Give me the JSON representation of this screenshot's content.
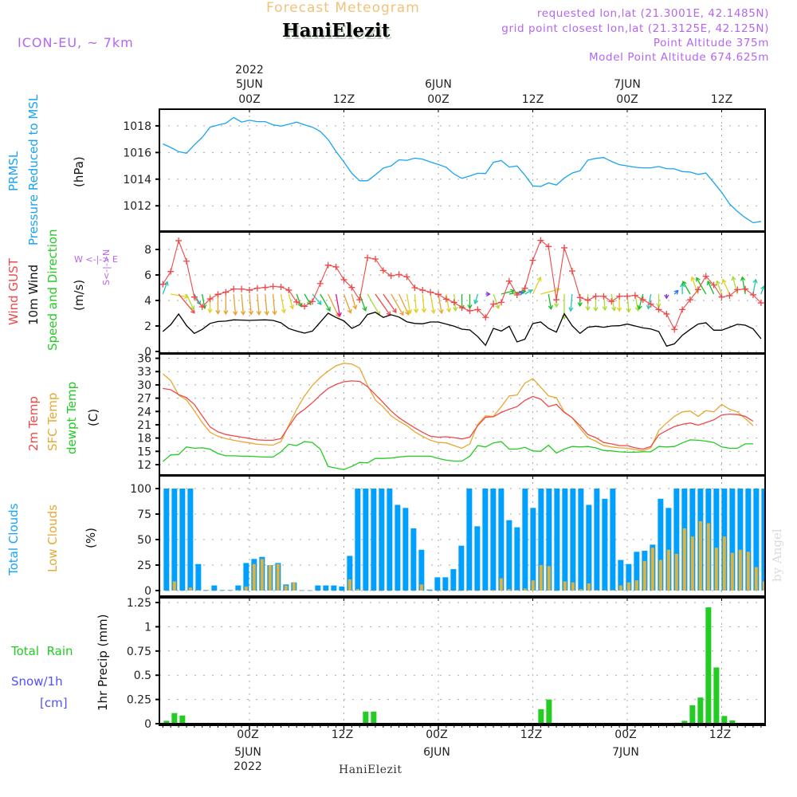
{
  "header": {
    "title": "Forecast Meteogram",
    "station": "HaniElezit",
    "model": "ICON-EU, ~ 7km",
    "requested": "requested lon,lat (21.3001E, 42.1485N)",
    "grid_point": "grid point closest lon,lat (21.3125E, 42.125N)",
    "point_altitude": "Point Altitude 375m",
    "model_altitude": "Model Point Altitude 674.625m"
  },
  "footer": {
    "station": "HaniElezit",
    "credit": "by Angel"
  },
  "time_axis": {
    "year": "2022",
    "dates": [
      {
        "label": "5JUN",
        "hour": 0
      },
      {
        "label": "6JUN",
        "hour": 24
      },
      {
        "label": "7JUN",
        "hour": 48
      }
    ],
    "hour_ticks": [
      {
        "label": "00Z",
        "hour": 0
      },
      {
        "label": "12Z",
        "hour": 12
      },
      {
        "label": "00Z",
        "hour": 24
      },
      {
        "label": "12Z",
        "hour": 36
      },
      {
        "label": "00Z",
        "hour": 48
      },
      {
        "label": "12Z",
        "hour": 60
      }
    ],
    "xlim_hours": [
      -11.44,
      65.52
    ],
    "first_sample_hour": -11
  },
  "labels": {
    "pressure": {
      "l1": "PRMSL",
      "l2": "Pressure Reduced to MSL",
      "unit": "(hPa)"
    },
    "wind": {
      "gust": "Wind GUST",
      "wind10": "10m Wind",
      "speed_dir": "Speed and Direction",
      "unit": "(m/s)",
      "compass_ns": "S<-|->N",
      "compass_we": "W <-|-> E"
    },
    "temp": {
      "t2m": "2m Temp",
      "sfc": "SFC Temp",
      "dew": "dewpt Temp",
      "unit": "(C)"
    },
    "clouds": {
      "total": "Total Clouds",
      "low": "Low Clouds",
      "unit": "(%)"
    },
    "precip": {
      "rain": "Total  Rain",
      "snow": "Snow/1h",
      "snow_unit": "[cm]",
      "axis": "1hr Precip (mm)"
    }
  },
  "colors": {
    "pressure": "#18a4f6",
    "gust": "#f04848",
    "wind10": "#000000",
    "t2m": "#f04848",
    "sfc": "#e8a830",
    "dew": "#22cc22",
    "total_clouds": "#00a0ff",
    "low_clouds": "#e8b030",
    "rain": "#22cc22",
    "snow": "#5050ff",
    "label_purple": "#b466ee",
    "arrow": {
      "o": "#eaa030",
      "y": "#e0d020",
      "g": "#10c020",
      "lg": "#a8dc30",
      "c": "#20c8b0",
      "r": "#f04848",
      "m": "#e0109a",
      "p": "#8a2be2",
      "b": "#2070ff"
    }
  },
  "chart_data": [
    {
      "type": "line",
      "panel": "pressure",
      "title": "PRMSL Pressure Reduced to MSL",
      "ylabel": "(hPa)",
      "ylim": [
        1010.1,
        1019.25
      ],
      "yticks": [
        1012,
        1014,
        1016,
        1018
      ],
      "grid": true,
      "series": [
        {
          "name": "PRMSL",
          "values": [
            1016.65,
            1016.38,
            1016.06,
            1015.94,
            1016.57,
            1017.13,
            1017.9,
            1018.06,
            1018.2,
            1018.63,
            1018.28,
            1018.42,
            1018.32,
            1018.32,
            1018.08,
            1017.98,
            1018.12,
            1018.28,
            1018.08,
            1017.9,
            1017.58,
            1016.97,
            1016.08,
            1015.29,
            1014.44,
            1013.88,
            1013.88,
            1014.32,
            1014.83,
            1015.0,
            1015.45,
            1015.41,
            1015.58,
            1015.5,
            1015.29,
            1015.1,
            1014.89,
            1014.38,
            1014.06,
            1014.24,
            1014.44,
            1014.42,
            1015.27,
            1015.39,
            1014.91,
            1014.99,
            1014.3,
            1013.49,
            1013.45,
            1013.72,
            1013.56,
            1014.08,
            1014.46,
            1014.63,
            1015.43,
            1015.56,
            1015.62,
            1015.33,
            1015.09,
            1015.0,
            1014.89,
            1014.85,
            1014.85,
            1014.95,
            1014.79,
            1014.77,
            1014.57,
            1014.53,
            1014.36,
            1014.46,
            1013.74,
            1013.01,
            1012.14,
            1011.58,
            1011.11,
            1010.73,
            1010.83
          ]
        }
      ]
    },
    {
      "type": "line",
      "panel": "wind",
      "title": "Wind GUST / 10m Wind Speed and Direction",
      "ylabel": "(m/s)",
      "ylim": [
        -0.125,
        9.375
      ],
      "yticks": [
        0,
        2,
        4,
        6,
        8
      ],
      "grid": true,
      "arrow_base_value": 4.5,
      "series": [
        {
          "name": "Wind GUST",
          "values": [
            5.27,
            6.27,
            8.69,
            7.08,
            4.27,
            3.5,
            4.12,
            4.48,
            4.65,
            4.9,
            4.9,
            4.81,
            4.96,
            5.02,
            5.1,
            5.06,
            4.81,
            3.88,
            3.54,
            3.92,
            5.33,
            6.77,
            6.63,
            5.63,
            5.02,
            4.06,
            7.35,
            7.25,
            6.35,
            5.94,
            6.04,
            5.85,
            5.0,
            4.81,
            4.65,
            4.48,
            4.1,
            3.85,
            3.44,
            3.19,
            3.29,
            2.67,
            3.71,
            3.85,
            5.52,
            4.44,
            4.96,
            7.15,
            8.71,
            8.23,
            4.06,
            8.13,
            6.31,
            4.23,
            4.02,
            4.33,
            4.33,
            3.92,
            4.33,
            4.33,
            4.4,
            4.06,
            3.71,
            3.29,
            2.94,
            1.73,
            3.29,
            4.06,
            4.85,
            5.9,
            5.21,
            4.27,
            4.38,
            4.85,
            4.9,
            4.44,
            3.81
          ]
        },
        {
          "name": "10m Wind",
          "values": [
            1.56,
            2.1,
            2.94,
            2.04,
            1.42,
            1.73,
            2.2,
            2.35,
            2.38,
            2.48,
            2.46,
            2.44,
            2.46,
            2.48,
            2.44,
            2.25,
            1.8,
            1.6,
            1.44,
            1.6,
            2.3,
            3.0,
            2.67,
            2.4,
            1.81,
            2.1,
            2.9,
            3.08,
            2.67,
            2.88,
            2.7,
            2.33,
            2.2,
            2.17,
            2.31,
            2.31,
            2.15,
            1.98,
            1.75,
            1.69,
            1.17,
            0.48,
            1.81,
            1.6,
            1.98,
            0.75,
            0.96,
            2.19,
            2.31,
            1.81,
            1.52,
            2.96,
            2.02,
            1.42,
            1.9,
            1.98,
            1.9,
            2.0,
            2.02,
            2.15,
            2.0,
            1.85,
            1.77,
            1.56,
            0.42,
            0.6,
            1.27,
            1.73,
            2.15,
            2.25,
            1.67,
            1.67,
            1.9,
            2.13,
            2.06,
            1.77,
            1.0
          ]
        }
      ],
      "wind_from_deg": [
        200,
        280,
        320,
        335,
        330,
        350,
        0,
        0,
        0,
        355,
        355,
        355,
        355,
        355,
        355,
        350,
        345,
        340,
        330,
        320,
        330,
        335,
        350,
        340,
        345,
        340,
        330,
        325,
        325,
        330,
        335,
        350,
        355,
        355,
        350,
        350,
        350,
        355,
        0,
        0,
        15,
        270,
        340,
        255,
        260,
        250,
        240,
        205,
        255,
        350,
        0,
        0,
        5,
        0,
        0,
        0,
        355,
        350,
        0,
        355,
        350,
        15,
        10,
        0,
        0,
        225,
        180,
        150,
        160,
        150,
        155,
        160,
        155,
        165,
        170,
        190,
        200
      ],
      "arrow_colors": [
        "c",
        "y",
        "r",
        "lg",
        "c",
        "g",
        "y",
        "o",
        "o",
        "o",
        "o",
        "o",
        "o",
        "o",
        "o",
        "y",
        "y",
        "g",
        "g",
        "c",
        "g",
        "o",
        "m",
        "o",
        "o",
        "g",
        "lg",
        "r",
        "r",
        "o",
        "o",
        "y",
        "y",
        "y",
        "y",
        "o",
        "y",
        "lg",
        "g",
        "g",
        "c",
        "p",
        "lg",
        "g",
        "g",
        "b",
        "c",
        "y",
        "y",
        "g",
        "lg",
        "lg",
        "c",
        "g",
        "lg",
        "lg",
        "lg",
        "lg",
        "y",
        "lg",
        "lg",
        "g",
        "c",
        "lg",
        "p",
        "b",
        "c",
        "g",
        "y",
        "g",
        "g",
        "lg",
        "y",
        "lg",
        "g",
        "c",
        "c"
      ]
    },
    {
      "type": "line",
      "panel": "temperature",
      "title": "2m Temp / SFC Temp / dewpt Temp",
      "ylabel": "(C)",
      "ylim": [
        9.66,
        37.0
      ],
      "yticks": [
        12,
        15,
        18,
        21,
        24,
        27,
        30,
        33,
        36
      ],
      "grid": true,
      "series": [
        {
          "name": "2m Temp",
          "values": [
            29.2,
            28.9,
            27.8,
            27.1,
            25.6,
            23.0,
            20.5,
            19.4,
            18.8,
            18.5,
            18.2,
            17.9,
            17.6,
            17.5,
            17.5,
            17.9,
            20.6,
            23.2,
            24.5,
            26.0,
            27.7,
            29.2,
            30.1,
            30.7,
            30.9,
            30.8,
            29.6,
            27.8,
            26.0,
            24.1,
            22.6,
            21.4,
            20.3,
            19.3,
            18.4,
            18.2,
            18.3,
            18.1,
            17.8,
            18.2,
            20.8,
            22.7,
            22.8,
            23.8,
            24.5,
            25.1,
            26.5,
            27.4,
            26.8,
            25.1,
            25.6,
            23.8,
            22.6,
            20.8,
            18.8,
            18.1,
            17.0,
            16.7,
            16.3,
            16.3,
            15.8,
            15.5,
            16.1,
            18.7,
            19.7,
            20.6,
            21.1,
            21.4,
            20.9,
            21.5,
            22.1,
            23.2,
            23.4,
            23.3,
            22.9,
            21.8
          ]
        },
        {
          "name": "SFC Temp",
          "values": [
            32.5,
            31.0,
            27.7,
            26.6,
            24.2,
            21.5,
            19.3,
            18.4,
            17.9,
            17.5,
            17.2,
            16.9,
            16.6,
            16.5,
            16.4,
            17.2,
            20.9,
            24.5,
            27.5,
            29.9,
            31.7,
            33.1,
            34.3,
            34.9,
            34.7,
            33.8,
            29.9,
            26.6,
            25.0,
            23.0,
            21.8,
            20.8,
            19.4,
            18.4,
            17.5,
            17.0,
            16.9,
            16.3,
            15.7,
            16.7,
            21.1,
            23.0,
            22.9,
            25.1,
            27.5,
            27.7,
            30.4,
            31.4,
            29.5,
            27.5,
            27.1,
            23.9,
            22.6,
            20.2,
            18.1,
            17.3,
            16.3,
            16.0,
            15.8,
            15.7,
            15.4,
            15.1,
            15.8,
            19.7,
            21.4,
            22.9,
            23.9,
            24.1,
            22.9,
            24.2,
            23.9,
            25.6,
            24.5,
            23.9,
            22.4,
            20.8
          ]
        },
        {
          "name": "dewpt Temp",
          "values": [
            12.7,
            14.2,
            14.3,
            16.0,
            15.7,
            15.8,
            15.5,
            14.5,
            14.0,
            14.0,
            13.9,
            13.9,
            13.8,
            13.7,
            13.7,
            14.9,
            16.6,
            16.3,
            17.2,
            17.0,
            15.5,
            11.6,
            11.2,
            10.9,
            11.6,
            12.5,
            12.4,
            13.4,
            13.4,
            13.5,
            13.7,
            13.9,
            13.9,
            13.9,
            13.9,
            13.4,
            13.0,
            12.8,
            12.8,
            13.9,
            16.3,
            16.0,
            16.9,
            17.2,
            15.5,
            15.5,
            15.9,
            15.1,
            15.0,
            16.4,
            14.6,
            15.5,
            16.1,
            16.0,
            16.1,
            15.8,
            15.2,
            15.1,
            14.9,
            14.8,
            14.8,
            14.9,
            14.9,
            16.1,
            16.0,
            16.1,
            16.9,
            17.6,
            17.5,
            17.3,
            17.0,
            16.0,
            15.7,
            15.7,
            16.7,
            16.7
          ]
        }
      ]
    },
    {
      "type": "bar",
      "panel": "clouds",
      "title": "Total Clouds / Low Clouds",
      "ylabel": "(%)",
      "ylim": [
        -5.5,
        112.5
      ],
      "yticks": [
        0,
        25,
        50,
        75,
        100
      ],
      "grid": true,
      "series": [
        {
          "name": "Total Clouds",
          "values": [
            100,
            100,
            100,
            100,
            26,
            0.5,
            5,
            0.5,
            0.5,
            5,
            27,
            31,
            33,
            25,
            27,
            6,
            8,
            0.3,
            0.3,
            5,
            5,
            5,
            4,
            34,
            100,
            100,
            100,
            100,
            100,
            84,
            81,
            61,
            40,
            1,
            13,
            13,
            21,
            44,
            100,
            63,
            100,
            100,
            100,
            69,
            62,
            100,
            81,
            100,
            100,
            100,
            100,
            100,
            100,
            84,
            100,
            90,
            100,
            30,
            26,
            38,
            39,
            45,
            90,
            81,
            100,
            100,
            100,
            100,
            100,
            100,
            100,
            100,
            100,
            100,
            100,
            100
          ]
        },
        {
          "name": "Low Clouds",
          "values": [
            0,
            9,
            0,
            3,
            0.5,
            0,
            0,
            0,
            0,
            0.5,
            4,
            26,
            31,
            25,
            26,
            5,
            8,
            0,
            0,
            0,
            0,
            0,
            0,
            11,
            1.5,
            0,
            0,
            0,
            0,
            0,
            0,
            0,
            6,
            0,
            0,
            0,
            0,
            0,
            0.5,
            0,
            0.5,
            0.5,
            12,
            1.5,
            0.5,
            2,
            10,
            25,
            24,
            0,
            9,
            8,
            1.5,
            7,
            0.5,
            0.5,
            0.5,
            5,
            8,
            10,
            29,
            42,
            30,
            40,
            36,
            61,
            53,
            68,
            66,
            42,
            53,
            37,
            40,
            38,
            23,
            9
          ]
        }
      ]
    },
    {
      "type": "bar",
      "panel": "precip",
      "title": "Total Rain / Snow/1h",
      "ylabel": "1hr Precip (mm)",
      "ylim": [
        -0.016,
        1.299
      ],
      "yticks": [
        0,
        0.25,
        0.5,
        0.75,
        1,
        1.25
      ],
      "ytick_labels": [
        "0",
        "0.25",
        "0.5",
        "0.75",
        "1",
        "1.25"
      ],
      "grid": true,
      "series": [
        {
          "name": "Total Rain",
          "values": [
            0.03,
            0.11,
            0.085,
            0,
            0,
            0,
            0,
            0,
            0,
            0,
            0,
            0,
            0,
            0,
            0,
            0,
            0,
            0,
            0,
            0,
            0,
            0,
            0,
            0,
            0,
            0.125,
            0.125,
            0,
            0,
            0,
            0,
            0,
            0,
            0,
            0,
            0,
            0,
            0,
            0,
            0,
            0,
            0,
            0,
            0,
            0.01,
            0,
            0,
            0.15,
            0.25,
            0,
            0,
            0,
            0,
            0,
            0,
            0,
            0,
            0,
            0,
            0,
            0,
            0,
            0,
            0,
            0.01,
            0.03,
            0.19,
            0.27,
            1.2,
            0.58,
            0.08,
            0.035,
            0,
            0,
            0,
            0
          ]
        }
      ]
    }
  ]
}
